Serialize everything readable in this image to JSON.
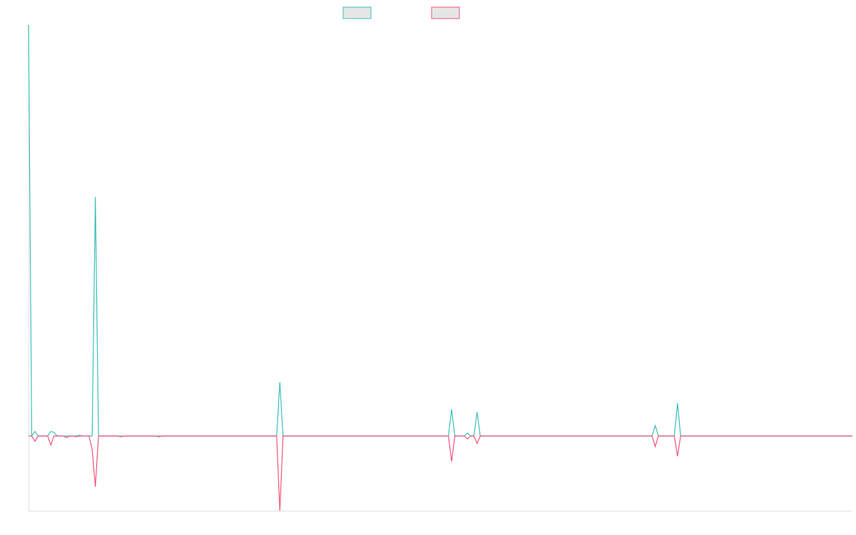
{
  "chart_data": {
    "type": "line",
    "title": "",
    "xlabel": "",
    "ylabel": "",
    "grid": false,
    "legend_placement": "top-center",
    "colors": {
      "series_a": "#3dbfb8",
      "series_b": "#f0557a",
      "legend_fill": "#e6e6e6",
      "axis": "#e0e0e0"
    },
    "ylim": [
      -100,
      550
    ],
    "x": [
      0,
      1,
      2,
      3,
      4,
      5,
      6,
      7,
      8,
      9,
      10,
      11,
      12,
      13,
      14,
      15,
      16,
      17,
      18,
      19,
      20,
      21,
      22,
      23,
      24,
      25,
      26,
      27,
      28,
      29,
      30,
      31,
      32,
      33,
      34,
      35,
      36,
      37,
      38,
      39,
      40,
      41,
      42,
      43,
      44,
      45,
      46,
      47,
      48,
      49,
      50,
      51,
      52,
      53,
      54,
      55,
      56,
      57,
      58,
      59,
      60,
      61,
      62,
      63,
      64,
      65,
      66,
      67,
      68,
      69,
      70,
      71,
      72,
      73,
      74,
      75,
      76,
      77,
      78,
      79,
      80,
      81,
      82,
      83,
      84,
      85,
      86,
      87,
      88,
      89,
      90,
      91,
      92,
      93,
      94,
      95,
      96,
      97,
      98,
      99,
      100,
      101,
      102,
      103,
      104,
      105,
      106,
      107,
      108,
      109,
      110,
      111,
      112,
      113,
      114,
      115,
      116,
      117,
      118,
      119,
      120,
      121,
      122,
      123,
      124,
      125,
      126,
      127,
      128,
      129,
      130,
      131,
      132,
      133,
      134,
      135,
      136,
      137,
      138,
      139,
      140,
      141,
      142,
      143,
      144,
      145,
      146,
      147,
      148,
      149,
      150,
      151,
      152,
      153,
      154,
      155,
      156,
      157,
      158,
      159,
      160,
      161,
      162,
      163,
      164,
      165,
      166,
      167,
      168,
      169,
      170,
      171,
      172,
      173,
      174,
      175,
      176,
      177,
      178,
      179,
      180,
      181,
      182,
      183,
      184,
      185,
      186,
      187,
      188,
      189,
      190,
      191,
      192,
      193,
      194,
      195,
      196,
      197,
      198,
      199,
      200,
      201,
      202,
      203,
      204,
      205,
      206,
      207,
      208,
      209,
      210,
      211,
      212,
      213,
      214,
      215,
      216,
      217,
      218,
      219,
      220,
      221,
      222,
      223,
      224,
      225,
      226,
      227,
      228,
      229,
      230,
      231,
      232,
      233,
      234,
      235,
      236,
      237,
      238,
      239,
      240,
      241,
      242,
      243,
      244,
      245,
      246,
      247,
      248,
      249,
      250,
      251,
      252,
      253,
      254,
      255,
      256,
      257,
      258,
      259
    ],
    "series": [
      {
        "values": [
          550,
          0,
          6,
          0,
          0,
          0,
          0,
          6,
          5,
          0,
          0,
          0,
          0,
          0,
          0,
          0,
          1,
          0,
          0,
          0,
          0,
          320,
          0,
          0,
          0,
          0,
          0,
          0,
          0,
          0,
          0,
          0,
          0,
          0,
          0,
          0,
          0,
          0,
          0,
          0,
          0,
          0,
          0,
          0,
          0,
          0,
          0,
          0,
          0,
          0,
          0,
          0,
          0,
          0,
          0,
          0,
          0,
          0,
          0,
          0,
          0,
          0,
          0,
          0,
          0,
          0,
          0,
          0,
          0,
          0,
          0,
          0,
          0,
          0,
          0,
          0,
          0,
          0,
          0,
          72,
          0,
          0,
          0,
          0,
          0,
          0,
          0,
          0,
          0,
          0,
          0,
          0,
          0,
          0,
          0,
          0,
          0,
          0,
          0,
          0,
          0,
          0,
          0,
          0,
          0,
          0,
          0,
          0,
          0,
          0,
          0,
          0,
          0,
          0,
          0,
          0,
          0,
          0,
          0,
          0,
          0,
          0,
          0,
          0,
          0,
          0,
          0,
          0,
          0,
          0,
          0,
          0,
          0,
          36,
          0,
          0,
          0,
          0,
          4,
          0,
          0,
          32,
          0,
          0,
          0,
          0,
          0,
          0,
          0,
          0,
          0,
          0,
          0,
          0,
          0,
          0,
          0,
          0,
          0,
          0,
          0,
          0,
          0,
          0,
          0,
          0,
          0,
          0,
          0,
          0,
          0,
          0,
          0,
          0,
          0,
          0,
          0,
          0,
          0,
          0,
          0,
          0,
          0,
          0,
          0,
          0,
          0,
          0,
          0,
          0,
          0,
          0,
          0,
          0,
          0,
          0,
          0,
          14,
          0,
          0,
          0,
          0,
          0,
          0,
          44,
          0,
          0,
          0,
          0,
          0,
          0,
          0,
          0,
          0,
          0,
          0,
          0,
          0,
          0,
          0,
          0,
          0,
          0,
          0,
          0,
          0,
          0,
          0,
          0,
          0,
          0,
          0,
          0,
          0,
          0,
          0,
          0,
          0,
          0,
          0,
          0,
          0,
          0,
          0,
          0,
          0,
          0,
          0,
          0,
          0,
          0,
          0,
          0,
          0,
          0,
          0,
          0,
          0,
          0,
          0
        ]
      },
      {
        "values": [
          0,
          0,
          -7,
          0,
          0,
          0,
          0,
          -12,
          0,
          0,
          0,
          0,
          -2,
          0,
          0,
          -1,
          0,
          0,
          0,
          0,
          -18,
          -68,
          0,
          0,
          0,
          0,
          0,
          0,
          0,
          -1,
          0,
          0,
          0,
          0,
          0,
          0,
          0,
          0,
          0,
          0,
          0,
          -1,
          0,
          0,
          0,
          0,
          0,
          0,
          0,
          0,
          0,
          0,
          0,
          0,
          0,
          0,
          0,
          0,
          0,
          0,
          0,
          0,
          0,
          0,
          0,
          0,
          0,
          0,
          0,
          0,
          0,
          0,
          0,
          0,
          0,
          0,
          0,
          0,
          0,
          -100,
          0,
          0,
          0,
          0,
          0,
          0,
          0,
          0,
          0,
          0,
          0,
          0,
          0,
          0,
          0,
          0,
          0,
          0,
          0,
          0,
          0,
          0,
          0,
          0,
          0,
          0,
          0,
          0,
          0,
          0,
          0,
          0,
          0,
          0,
          0,
          0,
          0,
          0,
          0,
          0,
          0,
          0,
          0,
          0,
          0,
          0,
          0,
          0,
          0,
          0,
          0,
          0,
          0,
          -34,
          0,
          0,
          0,
          0,
          -4,
          0,
          0,
          -10,
          0,
          0,
          0,
          0,
          0,
          0,
          0,
          0,
          0,
          0,
          0,
          0,
          0,
          0,
          0,
          0,
          0,
          0,
          0,
          0,
          0,
          0,
          0,
          0,
          0,
          0,
          0,
          0,
          0,
          0,
          0,
          0,
          0,
          0,
          0,
          0,
          0,
          0,
          0,
          0,
          0,
          0,
          0,
          0,
          0,
          0,
          0,
          0,
          0,
          0,
          0,
          0,
          0,
          0,
          0,
          -14,
          0,
          0,
          0,
          0,
          0,
          0,
          -27,
          0,
          0,
          0,
          0,
          0,
          0,
          0,
          0,
          0,
          0,
          0,
          0,
          0,
          0,
          0,
          0,
          0,
          0,
          0,
          0,
          0,
          0,
          0,
          0,
          0,
          0,
          0,
          0,
          0,
          0,
          0,
          0,
          0,
          0,
          0,
          0,
          0,
          0,
          0,
          0,
          0,
          0,
          0,
          0,
          0,
          0,
          0,
          0,
          0,
          0,
          0,
          0,
          0,
          0,
          0
        ]
      }
    ]
  }
}
